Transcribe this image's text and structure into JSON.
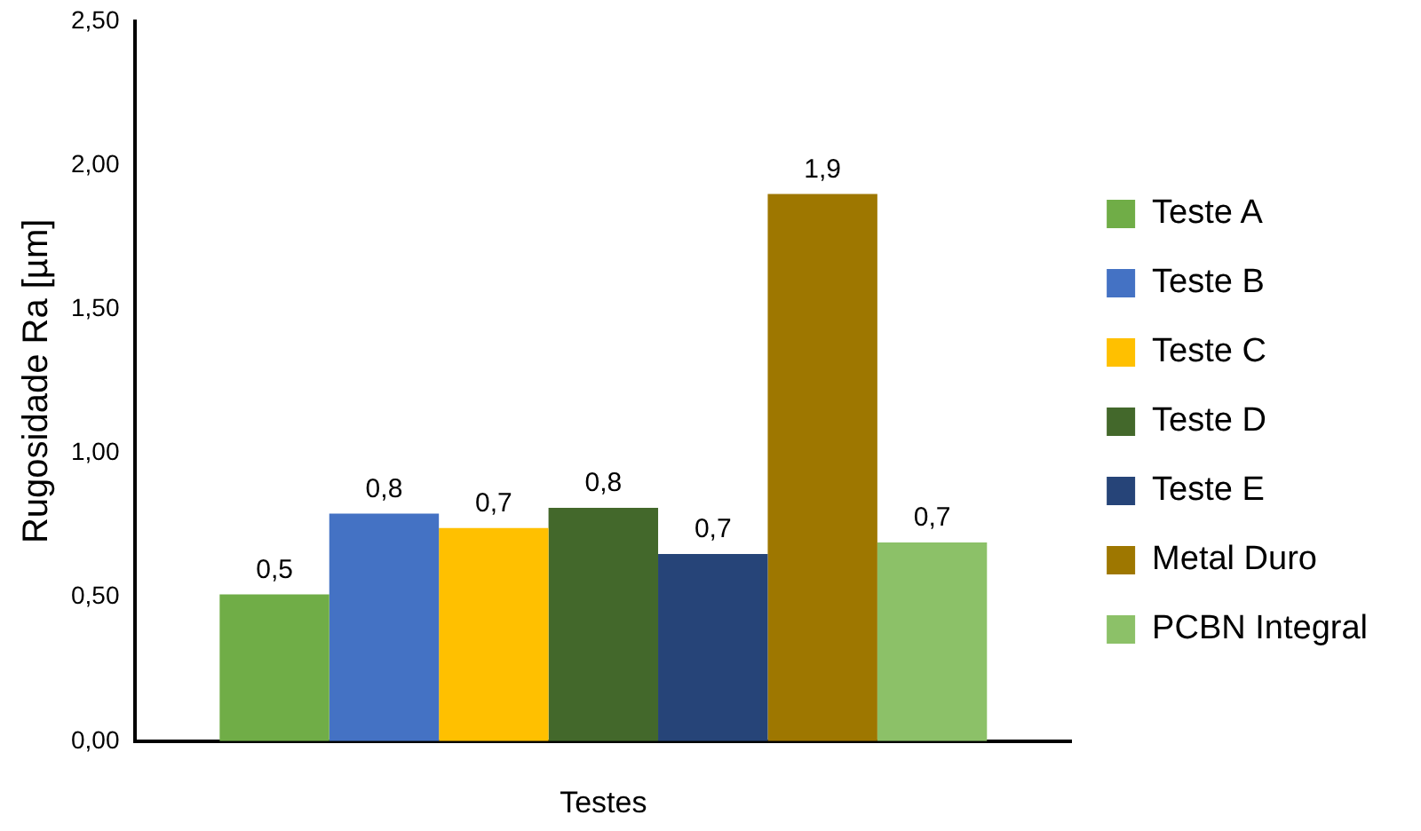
{
  "chart_data": {
    "type": "bar",
    "xlabel": "Testes",
    "ylabel": "Rugosidade Ra [µm]",
    "categories": [
      null
    ],
    "series": [
      {
        "name": "Teste A",
        "color": "#70ad47",
        "values": [
          0.51
        ],
        "value_labels": [
          "0,5"
        ]
      },
      {
        "name": "Teste B",
        "color": "#4472c4",
        "values": [
          0.79
        ],
        "value_labels": [
          "0,8"
        ]
      },
      {
        "name": "Teste C",
        "color": "#ffc000",
        "values": [
          0.74
        ],
        "value_labels": [
          "0,7"
        ]
      },
      {
        "name": "Teste D",
        "color": "#43682b",
        "values": [
          0.81
        ],
        "value_labels": [
          "0,8"
        ]
      },
      {
        "name": "Teste E",
        "color": "#264478",
        "values": [
          0.65
        ],
        "value_labels": [
          "0,7"
        ]
      },
      {
        "name": "Metal Duro",
        "color": "#9e7700",
        "values": [
          1.9
        ],
        "value_labels": [
          "1,9"
        ]
      },
      {
        "name": "PCBN Integral",
        "color": "#8cc168",
        "values": [
          0.69
        ],
        "value_labels": [
          "0,7"
        ]
      }
    ],
    "ylim": [
      0,
      2.5
    ],
    "yticks": [
      {
        "value": 0,
        "label": "0,00"
      },
      {
        "value": 0.5,
        "label": "0,50"
      },
      {
        "value": 1,
        "label": "1,00"
      },
      {
        "value": 1.5,
        "label": "1,50"
      },
      {
        "value": 2,
        "label": "2,00"
      },
      {
        "value": 2.5,
        "label": "2,50"
      }
    ],
    "grid": false,
    "legend": "right"
  }
}
